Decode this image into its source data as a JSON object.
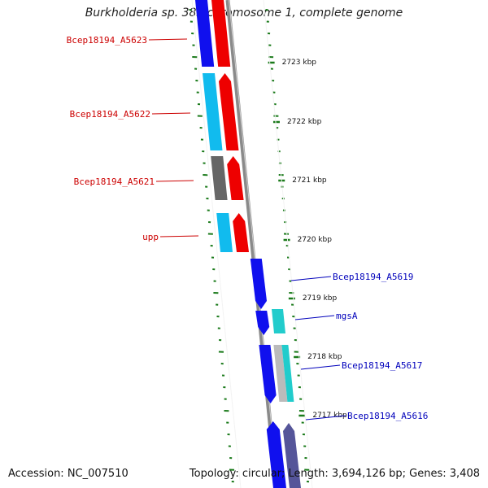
{
  "title": "Burkholderia sp. 383 chromosome 1, complete genome",
  "footer": {
    "accession": "Accession: NC_007510",
    "stats": "Topology: circular; Length: 3,694,126 bp; Genes: 3,408"
  },
  "colors": {
    "backbone": "#8a8a8a",
    "tick": "#1a7a1a",
    "forward_label": "#cc0000",
    "reverse_label": "#0000bb",
    "blue": "#1010ee",
    "red": "#ee0000",
    "cyan": "#11bbee",
    "gray": "#666666",
    "teal": "#22cccc",
    "lightgray": "#bbbbbb",
    "slate": "#555599"
  },
  "kbp_marks": [
    "2723 kbp",
    "2722 kbp",
    "2721 kbp",
    "2720 kbp",
    "2719 kbp",
    "2718 kbp",
    "2717 kbp"
  ],
  "forward_labels": [
    "Bcep18194_A5623",
    "Bcep18194_A5622",
    "Bcep18194_A5621",
    "upp"
  ],
  "reverse_labels": [
    "Bcep18194_A5619",
    "mgsA",
    "Bcep18194_A5617",
    "Bcep18194_A5616"
  ]
}
